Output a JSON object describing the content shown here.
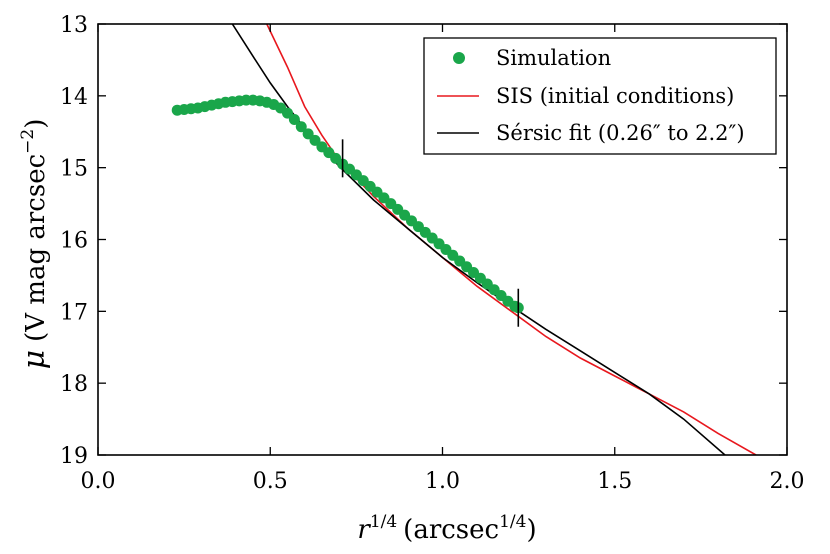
{
  "chart_data": {
    "type": "line",
    "title": "",
    "xlabel": "r^{1/4} (arcsec^{1/4})",
    "xlabel_parts": {
      "base": "r",
      "base_exp": "1/4",
      "unit_open": "(arcsec",
      "unit_exp": "1/4",
      "unit_close": ")"
    },
    "ylabel": "μ (V mag arcsec^{−2})",
    "ylabel_parts": {
      "symbol": "μ",
      "text": "(V mag arcsec",
      "exp": "−2",
      "close": ")"
    },
    "xlim": [
      0.0,
      2.0
    ],
    "ylim": [
      19,
      13
    ],
    "y_inverted": true,
    "grid": false,
    "legend_position": "top-right",
    "x_ticks": [
      0.0,
      0.5,
      1.0,
      1.5,
      2.0
    ],
    "x_tick_labels": [
      "0.0",
      "0.5",
      "1.0",
      "1.5",
      "2.0"
    ],
    "y_ticks": [
      13,
      14,
      15,
      16,
      17,
      18,
      19
    ],
    "y_tick_labels": [
      "13",
      "14",
      "15",
      "16",
      "17",
      "18",
      "19"
    ],
    "series": [
      {
        "name": "Simulation",
        "kind": "scatter",
        "color": "#1aa64a",
        "x": [
          0.23,
          0.25,
          0.27,
          0.29,
          0.31,
          0.33,
          0.35,
          0.37,
          0.39,
          0.41,
          0.43,
          0.45,
          0.47,
          0.49,
          0.51,
          0.53,
          0.55,
          0.57,
          0.59,
          0.61,
          0.63,
          0.65,
          0.67,
          0.69,
          0.71,
          0.73,
          0.75,
          0.77,
          0.79,
          0.81,
          0.83,
          0.85,
          0.87,
          0.89,
          0.91,
          0.93,
          0.95,
          0.97,
          0.99,
          1.01,
          1.03,
          1.05,
          1.07,
          1.09,
          1.11,
          1.13,
          1.15,
          1.17,
          1.19,
          1.21,
          1.22
        ],
        "y": [
          14.2,
          14.19,
          14.18,
          14.17,
          14.15,
          14.13,
          14.11,
          14.09,
          14.08,
          14.07,
          14.06,
          14.06,
          14.07,
          14.09,
          14.12,
          14.17,
          14.24,
          14.33,
          14.43,
          14.53,
          14.62,
          14.71,
          14.79,
          14.87,
          14.95,
          15.02,
          15.1,
          15.18,
          15.26,
          15.34,
          15.42,
          15.5,
          15.58,
          15.66,
          15.74,
          15.82,
          15.9,
          15.98,
          16.06,
          16.14,
          16.22,
          16.3,
          16.38,
          16.46,
          16.54,
          16.62,
          16.7,
          16.78,
          16.86,
          16.93,
          16.95
        ]
      },
      {
        "name": "SIS (initial conditions)",
        "kind": "line",
        "color": "#e8181e",
        "x": [
          0.49,
          0.55,
          0.6,
          0.65,
          0.7,
          0.8,
          0.9,
          1.0,
          1.1,
          1.2,
          1.3,
          1.4,
          1.5,
          1.6,
          1.7,
          1.8,
          1.91
        ],
        "y": [
          13.0,
          13.6,
          14.15,
          14.55,
          14.9,
          15.4,
          15.85,
          16.25,
          16.65,
          17.0,
          17.35,
          17.65,
          17.9,
          18.15,
          18.4,
          18.7,
          19.0
        ]
      },
      {
        "name": "Sérsic fit (0.26″ to 2.2″)",
        "kind": "line",
        "color": "#000000",
        "x": [
          0.39,
          0.45,
          0.5,
          0.55,
          0.6,
          0.65,
          0.7,
          0.8,
          0.9,
          1.0,
          1.1,
          1.2,
          1.3,
          1.4,
          1.5,
          1.6,
          1.7,
          1.82
        ],
        "y": [
          13.0,
          13.45,
          13.82,
          14.15,
          14.45,
          14.72,
          14.98,
          15.45,
          15.85,
          16.25,
          16.6,
          16.93,
          17.25,
          17.55,
          17.85,
          18.15,
          18.5,
          19.0
        ]
      }
    ],
    "fit_range_markers": [
      {
        "x": 0.71,
        "y": 14.87
      },
      {
        "x": 1.22,
        "y": 16.95
      }
    ]
  }
}
